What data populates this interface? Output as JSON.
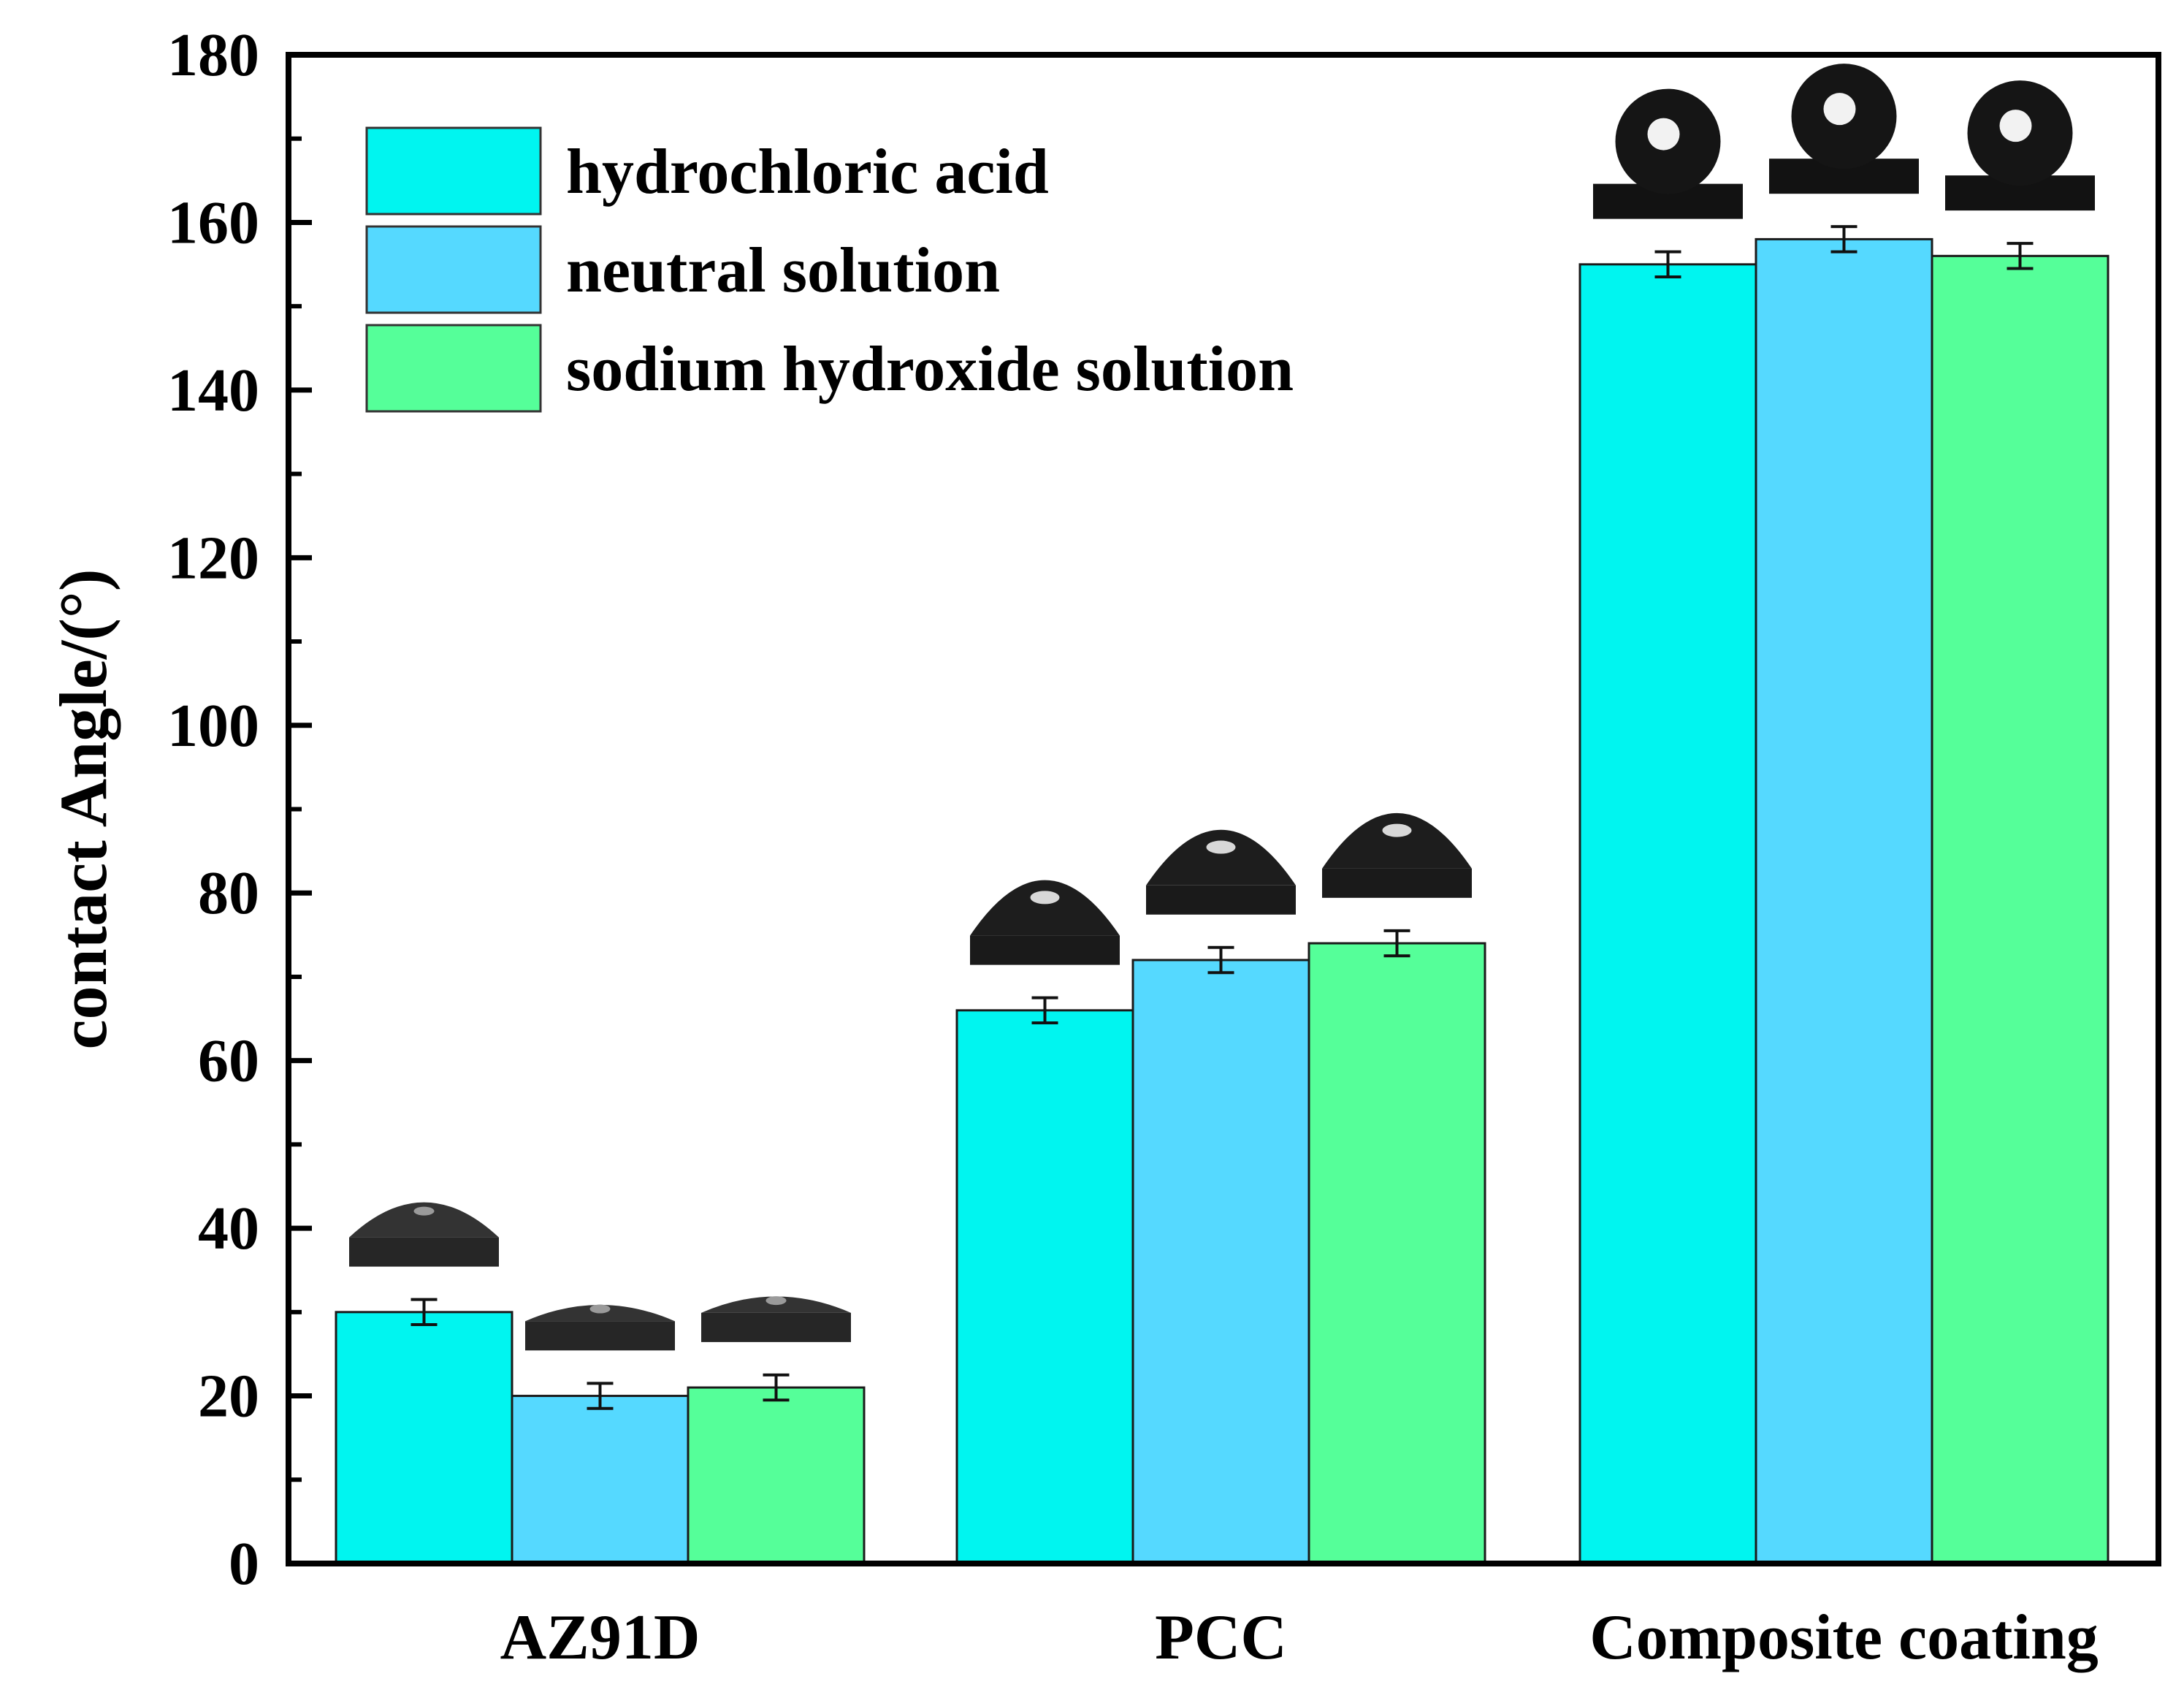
{
  "chart_data": {
    "type": "bar",
    "title": "",
    "xlabel": "",
    "ylabel": "contact Angle/(°)",
    "ylim": [
      0,
      180
    ],
    "yticks": [
      0,
      20,
      40,
      60,
      80,
      100,
      120,
      140,
      160,
      180
    ],
    "categories": [
      "AZ91D",
      "PCC",
      "Composite coating"
    ],
    "legend_position": "top-left",
    "grid": false,
    "series": [
      {
        "name": "hydrochloric acid",
        "color": "#00f5f0",
        "values": [
          30,
          66,
          155
        ],
        "errors": [
          1.5,
          1.5,
          1.5
        ]
      },
      {
        "name": "neutral solution",
        "color": "#55d9ff",
        "values": [
          20,
          72,
          158
        ],
        "errors": [
          1.5,
          1.5,
          1.5
        ]
      },
      {
        "name": "sodium hydroxide solution",
        "color": "#55ff99",
        "values": [
          21,
          74,
          156
        ],
        "errors": [
          1.5,
          1.5,
          1.5
        ]
      }
    ],
    "annotations": "droplet contact-angle photos shown above each bar"
  }
}
